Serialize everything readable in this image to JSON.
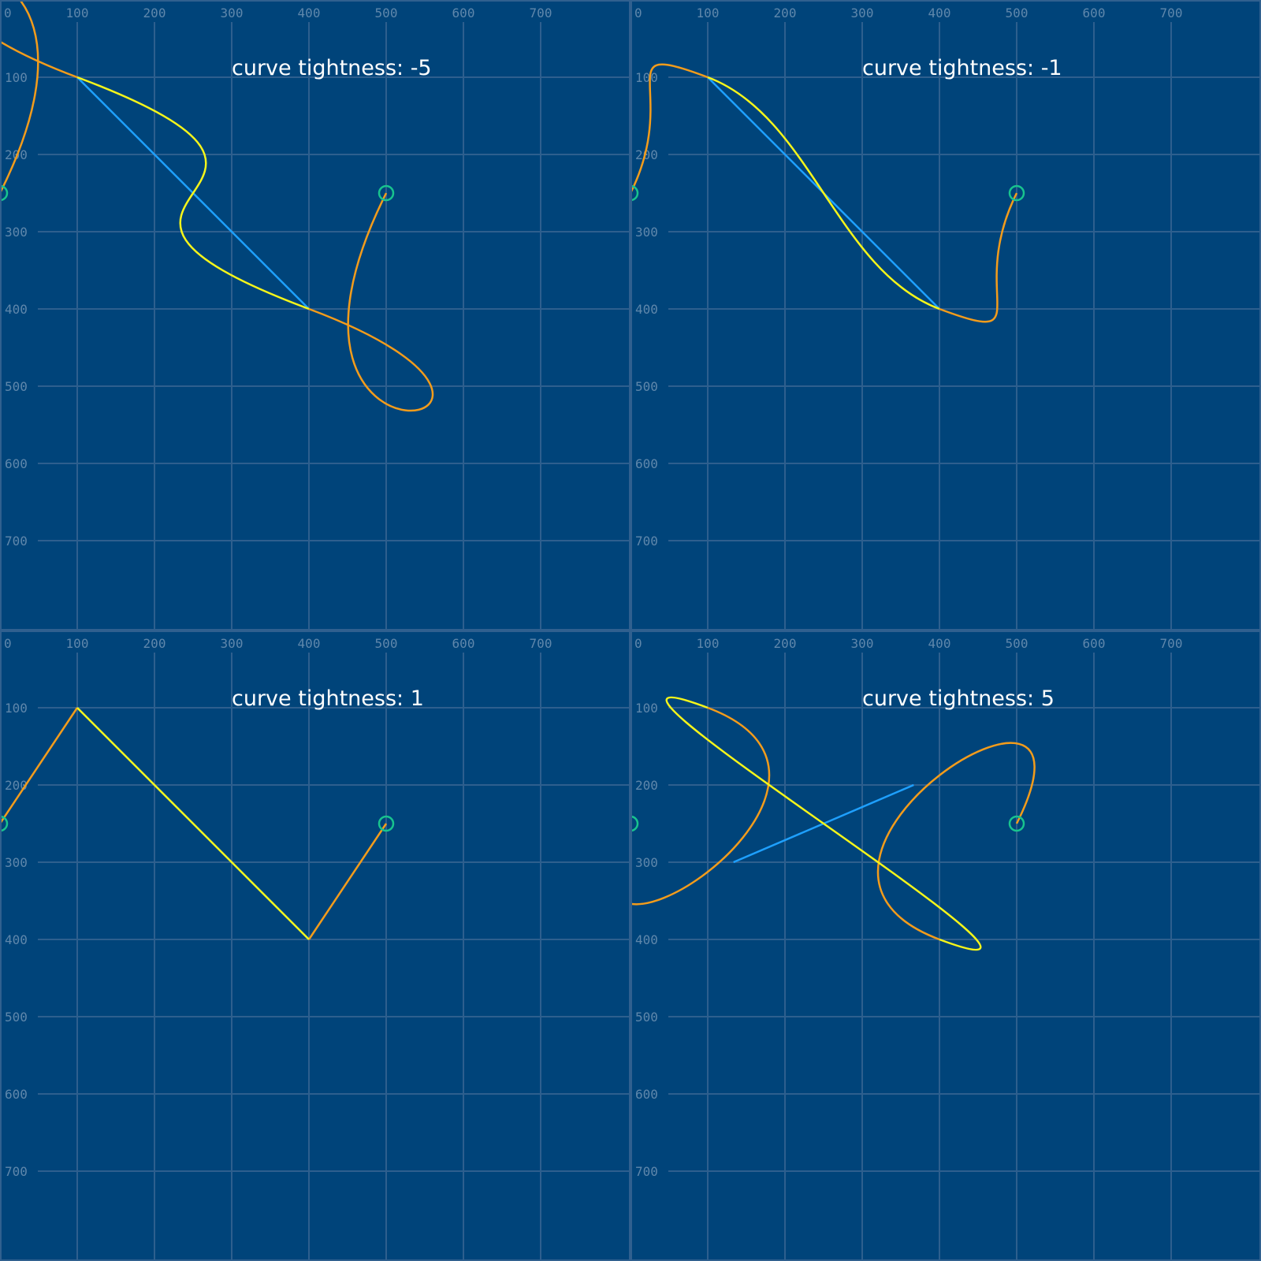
{
  "colors": {
    "background": "#00447a",
    "separator": "#30608f",
    "grid": "#2e5f8e",
    "tick_text": "#5f87ab",
    "title_text": "#ffffff",
    "control_line": "#1ea0ff",
    "inner_curve": "#f5f51a",
    "outer_curve": "#f39c1b",
    "endpoint_marker": "#18c48e"
  },
  "axes": {
    "x_range": [
      0,
      800
    ],
    "y_range": [
      0,
      800
    ],
    "x_ticks": [
      "0",
      "100",
      "200",
      "300",
      "400",
      "500",
      "600",
      "700"
    ],
    "y_ticks": [
      "100",
      "200",
      "300",
      "400",
      "500",
      "600",
      "700"
    ]
  },
  "points": {
    "p0": [
      0,
      250
    ],
    "p1": [
      100,
      100
    ],
    "p2": [
      400,
      400
    ],
    "p3": [
      500,
      250
    ]
  },
  "panels": [
    {
      "title": "curve tightness: -5",
      "tightness": -5
    },
    {
      "title": "curve tightness: -1",
      "tightness": -1
    },
    {
      "title": "curve tightness: 1",
      "tightness": 1
    },
    {
      "title": "curve tightness: 5",
      "tightness": 5
    }
  ]
}
